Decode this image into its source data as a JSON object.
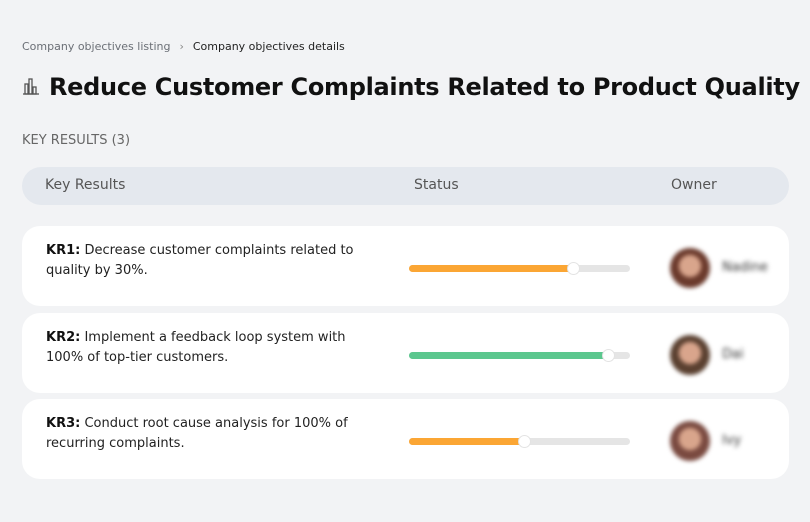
{
  "breadcrumb": {
    "items": [
      "Company objectives listing",
      "Company objectives details"
    ],
    "separator": "›"
  },
  "title": "Reduce Customer Complaints Related to Product Quality",
  "title_icon": "building-chart-icon",
  "key_results_label": "KEY RESULTS (3)",
  "table": {
    "headers": [
      "Key Results",
      "Status",
      "Owner"
    ]
  },
  "key_results": [
    {
      "id": "KR1:",
      "text": " Decrease customer complaints related to quality by 30%.",
      "progress": 74,
      "color": "#fba634",
      "owner": "Nadine",
      "avatar_color": "#6b3a2c"
    },
    {
      "id": "KR2:",
      "text": " Implement a feedback loop system with 100% of top-tier customers.",
      "progress": 90,
      "color": "#5bc78e",
      "owner": "Dai",
      "avatar_color": "#5a4030"
    },
    {
      "id": "KR3:",
      "text": " Conduct root cause analysis for 100% of recurring complaints.",
      "progress": 52,
      "color": "#fba634",
      "owner": "Ivy",
      "avatar_color": "#7a4a40"
    }
  ]
}
